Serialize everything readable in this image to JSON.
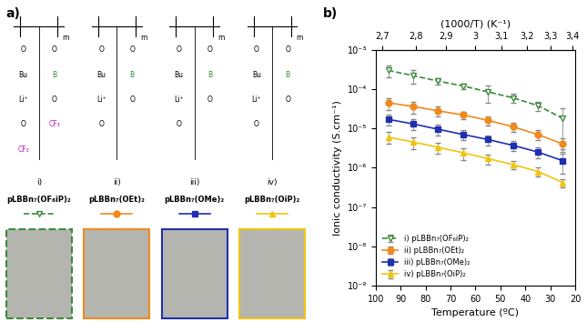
{
  "panels": {
    "a": "a)",
    "b": "b)"
  },
  "structures": [
    {
      "name": "pLBBn₇(OF₆iP)₂",
      "color": "#3a8a3a",
      "marker": "triangle_down_open",
      "line_style": "dashed",
      "labels": [
        "m",
        "O",
        "O",
        "Bu",
        "B",
        "Li⁺",
        "O",
        "O",
        "CF₃",
        "CF₃"
      ]
    },
    {
      "name": "pLBBn₇(OEt)₂",
      "color": "#f08a1c",
      "marker": "circle",
      "line_style": "solid",
      "labels": [
        "m",
        "O",
        "O",
        "Bu",
        "B",
        "Li⁺",
        "O",
        "O"
      ]
    },
    {
      "name": "pLBBn₇(OMe)₂",
      "color": "#1f2fb0",
      "marker": "square",
      "line_style": "solid",
      "labels": [
        "m",
        "O",
        "O",
        "Bu",
        "B",
        "Li⁺",
        "O",
        "O"
      ]
    },
    {
      "name": "pLBBn₇(OiP)₂",
      "color": "#f2c40f",
      "marker": "triangle_up",
      "line_style": "solid",
      "labels": [
        "m",
        "O",
        "O",
        "Bu",
        "B",
        "Li⁺",
        "O",
        "O"
      ]
    }
  ],
  "roman": [
    "i)",
    "ii)",
    "iii)",
    "iv)"
  ],
  "chart_data": {
    "type": "line",
    "x_label": "Temperature (ºC)",
    "y_label": "Ionic conductivity (S.cm⁻¹)",
    "x2_label": "(1000/T) (K⁻¹)",
    "x": [
      95,
      85,
      75,
      65,
      55,
      45,
      35,
      25
    ],
    "xlim": [
      100,
      20
    ],
    "xticks": [
      100,
      90,
      80,
      70,
      60,
      50,
      40,
      30,
      20
    ],
    "x2ticks": [
      {
        "value": 2.7,
        "label": "2,7"
      },
      {
        "value": 2.8,
        "label": "2,8"
      },
      {
        "value": 2.9,
        "label": "2,9"
      },
      {
        "value": 3.0,
        "label": "3"
      },
      {
        "value": 3.1,
        "label": "3,1"
      },
      {
        "value": 3.2,
        "label": "3,2"
      },
      {
        "value": 3.3,
        "label": "3,3"
      },
      {
        "value": 3.4,
        "label": "3,4"
      }
    ],
    "log": "y",
    "ylim": [
      1e-09,
      0.001
    ],
    "yticks": [
      {
        "value": 1e-09,
        "label": "10⁻⁹"
      },
      {
        "value": 1e-08,
        "label": "10⁻⁸"
      },
      {
        "value": 1e-07,
        "label": "10⁻⁷"
      },
      {
        "value": 1e-06,
        "label": "10⁻⁶"
      },
      {
        "value": 1e-05,
        "label": "10⁻⁵"
      },
      {
        "value": 0.0001,
        "label": "10⁻⁴"
      },
      {
        "value": 0.001,
        "label": "10⁻³"
      }
    ],
    "legend": "lower left",
    "series": [
      {
        "name": "i) pLBBn₇(OF₆iP)₂",
        "color": "#3a8a3a",
        "marker": "triangle_down_open",
        "line_style": "dashed",
        "values": [
          0.0003,
          0.00022,
          0.00016,
          0.00012,
          8.5e-05,
          6e-05,
          3.8e-05,
          1.8e-05
        ],
        "errors": [
          0.0001,
          8e-05,
          3e-05,
          2e-05,
          4e-05,
          1.5e-05,
          1e-05,
          1.5e-05
        ]
      },
      {
        "name": "ii) pLBBn₇(OEt)₂",
        "color": "#f08a1c",
        "marker": "circle",
        "line_style": "solid",
        "values": [
          4.5e-05,
          3.6e-05,
          2.8e-05,
          2.2e-05,
          1.6e-05,
          1.1e-05,
          7e-06,
          4e-06
        ],
        "errors": [
          1.5e-05,
          1.2e-05,
          8e-06,
          5e-06,
          4e-06,
          3e-06,
          2e-06,
          1.5e-06
        ]
      },
      {
        "name": "iii) pLBBn₇(OMe)₂",
        "color": "#1f2fb0",
        "marker": "square",
        "line_style": "solid",
        "values": [
          1.7e-05,
          1.3e-05,
          9.5e-06,
          7e-06,
          5.2e-06,
          3.7e-06,
          2.5e-06,
          1.5e-06
        ],
        "errors": [
          5e-06,
          4e-06,
          3e-06,
          2e-06,
          1.5e-06,
          1e-06,
          8e-07,
          8e-07
        ]
      },
      {
        "name": "iv) pLBBn₇(OiP)₂",
        "color": "#f2c40f",
        "marker": "triangle_up",
        "line_style": "solid",
        "values": [
          6e-06,
          4.5e-06,
          3.3e-06,
          2.4e-06,
          1.7e-06,
          1.2e-06,
          8e-07,
          4.2e-07
        ],
        "errors": [
          2e-06,
          1.5e-06,
          1e-06,
          8e-07,
          5e-07,
          3e-07,
          2e-07,
          1e-07
        ]
      }
    ]
  }
}
